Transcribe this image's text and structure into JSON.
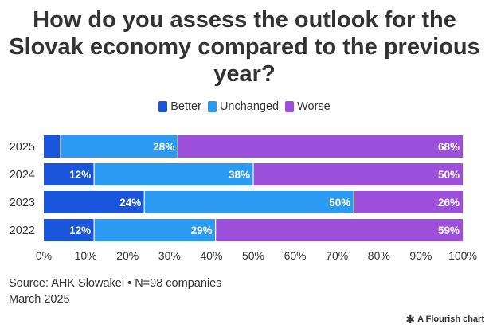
{
  "title_lines": [
    "How do you assess the outlook for the",
    "Slovak economy compared to the previous",
    "year?"
  ],
  "source": "Source: AHK Slowakei • N=98 companies",
  "date": "March 2025",
  "brand": "A Flourish chart",
  "brand_icon": "flourish-star-icon",
  "chart_data": {
    "type": "bar",
    "orientation": "horizontal",
    "stacked": true,
    "categories": [
      "2025",
      "2024",
      "2023",
      "2022"
    ],
    "series": [
      {
        "name": "Better",
        "color": "#1a56db",
        "values": [
          4,
          12,
          24,
          12
        ],
        "labels": [
          "",
          "12%",
          "24%",
          "12%"
        ]
      },
      {
        "name": "Unchanged",
        "color": "#2b9af3",
        "values": [
          28,
          38,
          50,
          29
        ],
        "labels": [
          "28%",
          "38%",
          "50%",
          "29%"
        ]
      },
      {
        "name": "Worse",
        "color": "#9b4fdb",
        "values": [
          68,
          50,
          26,
          59
        ],
        "labels": [
          "68%",
          "50%",
          "26%",
          "59%"
        ]
      }
    ],
    "xlim": [
      0,
      100
    ],
    "xticks": [
      "0%",
      "10%",
      "20%",
      "30%",
      "40%",
      "50%",
      "60%",
      "70%",
      "80%",
      "90%",
      "100%"
    ],
    "legend_position": "top-center",
    "grid": false
  }
}
